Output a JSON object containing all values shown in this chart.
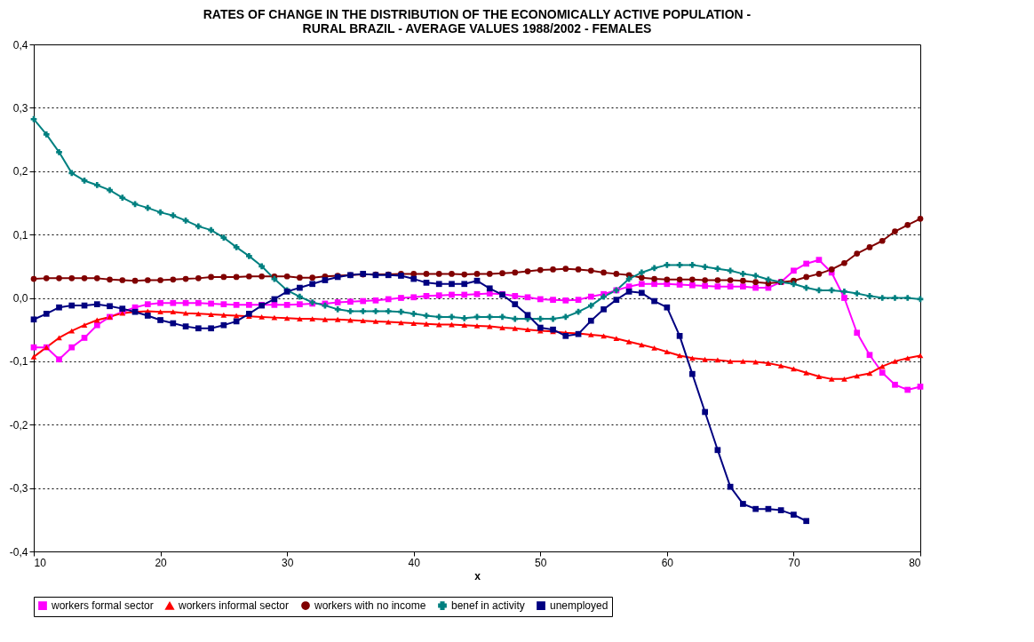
{
  "chart_data": {
    "type": "line",
    "title": [
      "RATES OF CHANGE IN THE DISTRIBUTION OF THE ECONOMICALLY ACTIVE POPULATION  -",
      "RURAL BRAZIL -  AVERAGE VALUES 1988/2002 - FEMALES"
    ],
    "xlabel": "x",
    "x": [
      10,
      11,
      12,
      13,
      14,
      15,
      16,
      17,
      18,
      19,
      20,
      21,
      22,
      23,
      24,
      25,
      26,
      27,
      28,
      29,
      30,
      31,
      32,
      33,
      34,
      35,
      36,
      37,
      38,
      39,
      40,
      41,
      42,
      43,
      44,
      45,
      46,
      47,
      48,
      49,
      50,
      51,
      52,
      53,
      54,
      55,
      56,
      57,
      58,
      59,
      60,
      61,
      62,
      63,
      64,
      65,
      66,
      67,
      68,
      69,
      70,
      71,
      72,
      73,
      74,
      75,
      76,
      77,
      78,
      79,
      80
    ],
    "series": [
      {
        "name": "workers formal sector",
        "color": "#ff00ff",
        "marker": "square",
        "values": [
          -0.078,
          -0.078,
          -0.097,
          -0.078,
          -0.063,
          -0.043,
          -0.03,
          -0.022,
          -0.015,
          -0.01,
          -0.008,
          -0.008,
          -0.008,
          -0.008,
          -0.009,
          -0.01,
          -0.011,
          -0.011,
          -0.011,
          -0.011,
          -0.011,
          -0.01,
          -0.009,
          -0.009,
          -0.007,
          -0.006,
          -0.005,
          -0.004,
          -0.002,
          0,
          0.001,
          0.003,
          0.004,
          0.005,
          0.005,
          0.006,
          0.007,
          0.006,
          0.003,
          0.001,
          -0.002,
          -0.003,
          -0.004,
          -0.003,
          0.002,
          0.006,
          0.012,
          0.018,
          0.022,
          0.022,
          0.022,
          0.021,
          0.02,
          0.019,
          0.018,
          0.018,
          0.018,
          0.016,
          0.016,
          0.025,
          0.043,
          0.054,
          0.06,
          0.04,
          0,
          -0.055,
          -0.09,
          -0.118,
          -0.137,
          -0.145,
          -0.14
        ]
      },
      {
        "name": "workers informal sector",
        "color": "#ff0000",
        "marker": "triangle",
        "values": [
          -0.093,
          -0.078,
          -0.063,
          -0.052,
          -0.043,
          -0.035,
          -0.03,
          -0.024,
          -0.022,
          -0.021,
          -0.022,
          -0.022,
          -0.024,
          -0.025,
          -0.026,
          -0.027,
          -0.028,
          -0.029,
          -0.03,
          -0.031,
          -0.032,
          -0.033,
          -0.033,
          -0.034,
          -0.034,
          -0.035,
          -0.036,
          -0.037,
          -0.038,
          -0.039,
          -0.04,
          -0.041,
          -0.042,
          -0.042,
          -0.043,
          -0.044,
          -0.045,
          -0.047,
          -0.048,
          -0.05,
          -0.052,
          -0.053,
          -0.055,
          -0.056,
          -0.058,
          -0.06,
          -0.064,
          -0.069,
          -0.074,
          -0.079,
          -0.085,
          -0.091,
          -0.095,
          -0.097,
          -0.098,
          -0.1,
          -0.1,
          -0.101,
          -0.103,
          -0.107,
          -0.112,
          -0.118,
          -0.124,
          -0.128,
          -0.128,
          -0.123,
          -0.119,
          -0.108,
          -0.1,
          -0.095,
          -0.091
        ]
      },
      {
        "name": "workers with no income",
        "color": "#800000",
        "marker": "circle",
        "values": [
          0.03,
          0.031,
          0.031,
          0.031,
          0.031,
          0.031,
          0.029,
          0.028,
          0.027,
          0.028,
          0.028,
          0.029,
          0.03,
          0.031,
          0.033,
          0.033,
          0.033,
          0.034,
          0.034,
          0.034,
          0.034,
          0.032,
          0.032,
          0.034,
          0.035,
          0.036,
          0.037,
          0.037,
          0.037,
          0.038,
          0.038,
          0.038,
          0.038,
          0.038,
          0.037,
          0.038,
          0.038,
          0.039,
          0.04,
          0.042,
          0.044,
          0.045,
          0.046,
          0.045,
          0.043,
          0.04,
          0.038,
          0.036,
          0.032,
          0.03,
          0.029,
          0.029,
          0.029,
          0.028,
          0.028,
          0.028,
          0.027,
          0.025,
          0.023,
          0.025,
          0.027,
          0.033,
          0.038,
          0.045,
          0.055,
          0.07,
          0.08,
          0.09,
          0.105,
          0.115,
          0.125
        ]
      },
      {
        "name": "benef in activity",
        "color": "#008080",
        "marker": "cross",
        "values": [
          0.282,
          0.258,
          0.23,
          0.197,
          0.185,
          0.178,
          0.17,
          0.158,
          0.148,
          0.142,
          0.135,
          0.13,
          0.122,
          0.113,
          0.107,
          0.095,
          0.08,
          0.066,
          0.05,
          0.03,
          0.012,
          0.002,
          -0.007,
          -0.012,
          -0.018,
          -0.021,
          -0.021,
          -0.021,
          -0.021,
          -0.022,
          -0.025,
          -0.028,
          -0.03,
          -0.03,
          -0.032,
          -0.03,
          -0.03,
          -0.03,
          -0.033,
          -0.033,
          -0.033,
          -0.033,
          -0.03,
          -0.022,
          -0.012,
          0.002,
          0.012,
          0.03,
          0.04,
          0.047,
          0.052,
          0.052,
          0.052,
          0.049,
          0.046,
          0.043,
          0.038,
          0.035,
          0.029,
          0.025,
          0.022,
          0.016,
          0.012,
          0.012,
          0.01,
          0.007,
          0.003,
          0,
          0,
          0,
          -0.002
        ]
      },
      {
        "name": "unemployed",
        "color": "#000080",
        "marker": "square",
        "values": [
          -0.034,
          -0.025,
          -0.015,
          -0.012,
          -0.012,
          -0.01,
          -0.013,
          -0.017,
          -0.022,
          -0.028,
          -0.035,
          -0.04,
          -0.045,
          -0.048,
          -0.048,
          -0.043,
          -0.037,
          -0.025,
          -0.012,
          -0.002,
          0.01,
          0.016,
          0.022,
          0.028,
          0.033,
          0.036,
          0.038,
          0.036,
          0.036,
          0.035,
          0.03,
          0.024,
          0.022,
          0.022,
          0.022,
          0.027,
          0.015,
          0.005,
          -0.01,
          -0.027,
          -0.047,
          -0.05,
          -0.06,
          -0.057,
          -0.036,
          -0.018,
          -0.003,
          0.01,
          0.008,
          -0.005,
          -0.015,
          -0.06,
          -0.12,
          -0.18,
          -0.24,
          -0.298,
          -0.325,
          -0.333,
          -0.333,
          -0.335,
          -0.342,
          -0.352,
          null,
          null,
          null,
          null,
          null,
          null,
          null,
          null,
          null
        ]
      }
    ],
    "xlim": [
      10,
      80
    ],
    "xticks": [
      10,
      20,
      30,
      40,
      50,
      60,
      70,
      80
    ],
    "ylim": [
      -0.4,
      0.4
    ],
    "yticks": [
      {
        "value": -0.4,
        "label": "-0,4"
      },
      {
        "value": -0.3,
        "label": "-0,3"
      },
      {
        "value": -0.2,
        "label": "-0,2"
      },
      {
        "value": -0.1,
        "label": "-0,1"
      },
      {
        "value": 0,
        "label": "0,0"
      },
      {
        "value": 0.1,
        "label": "0,1"
      },
      {
        "value": 0.2,
        "label": "0,2"
      },
      {
        "value": 0.3,
        "label": "0,3"
      },
      {
        "value": 0.4,
        "label": "0,4"
      }
    ],
    "grid": "y",
    "legend": "bottom",
    "line_style": "solid"
  }
}
